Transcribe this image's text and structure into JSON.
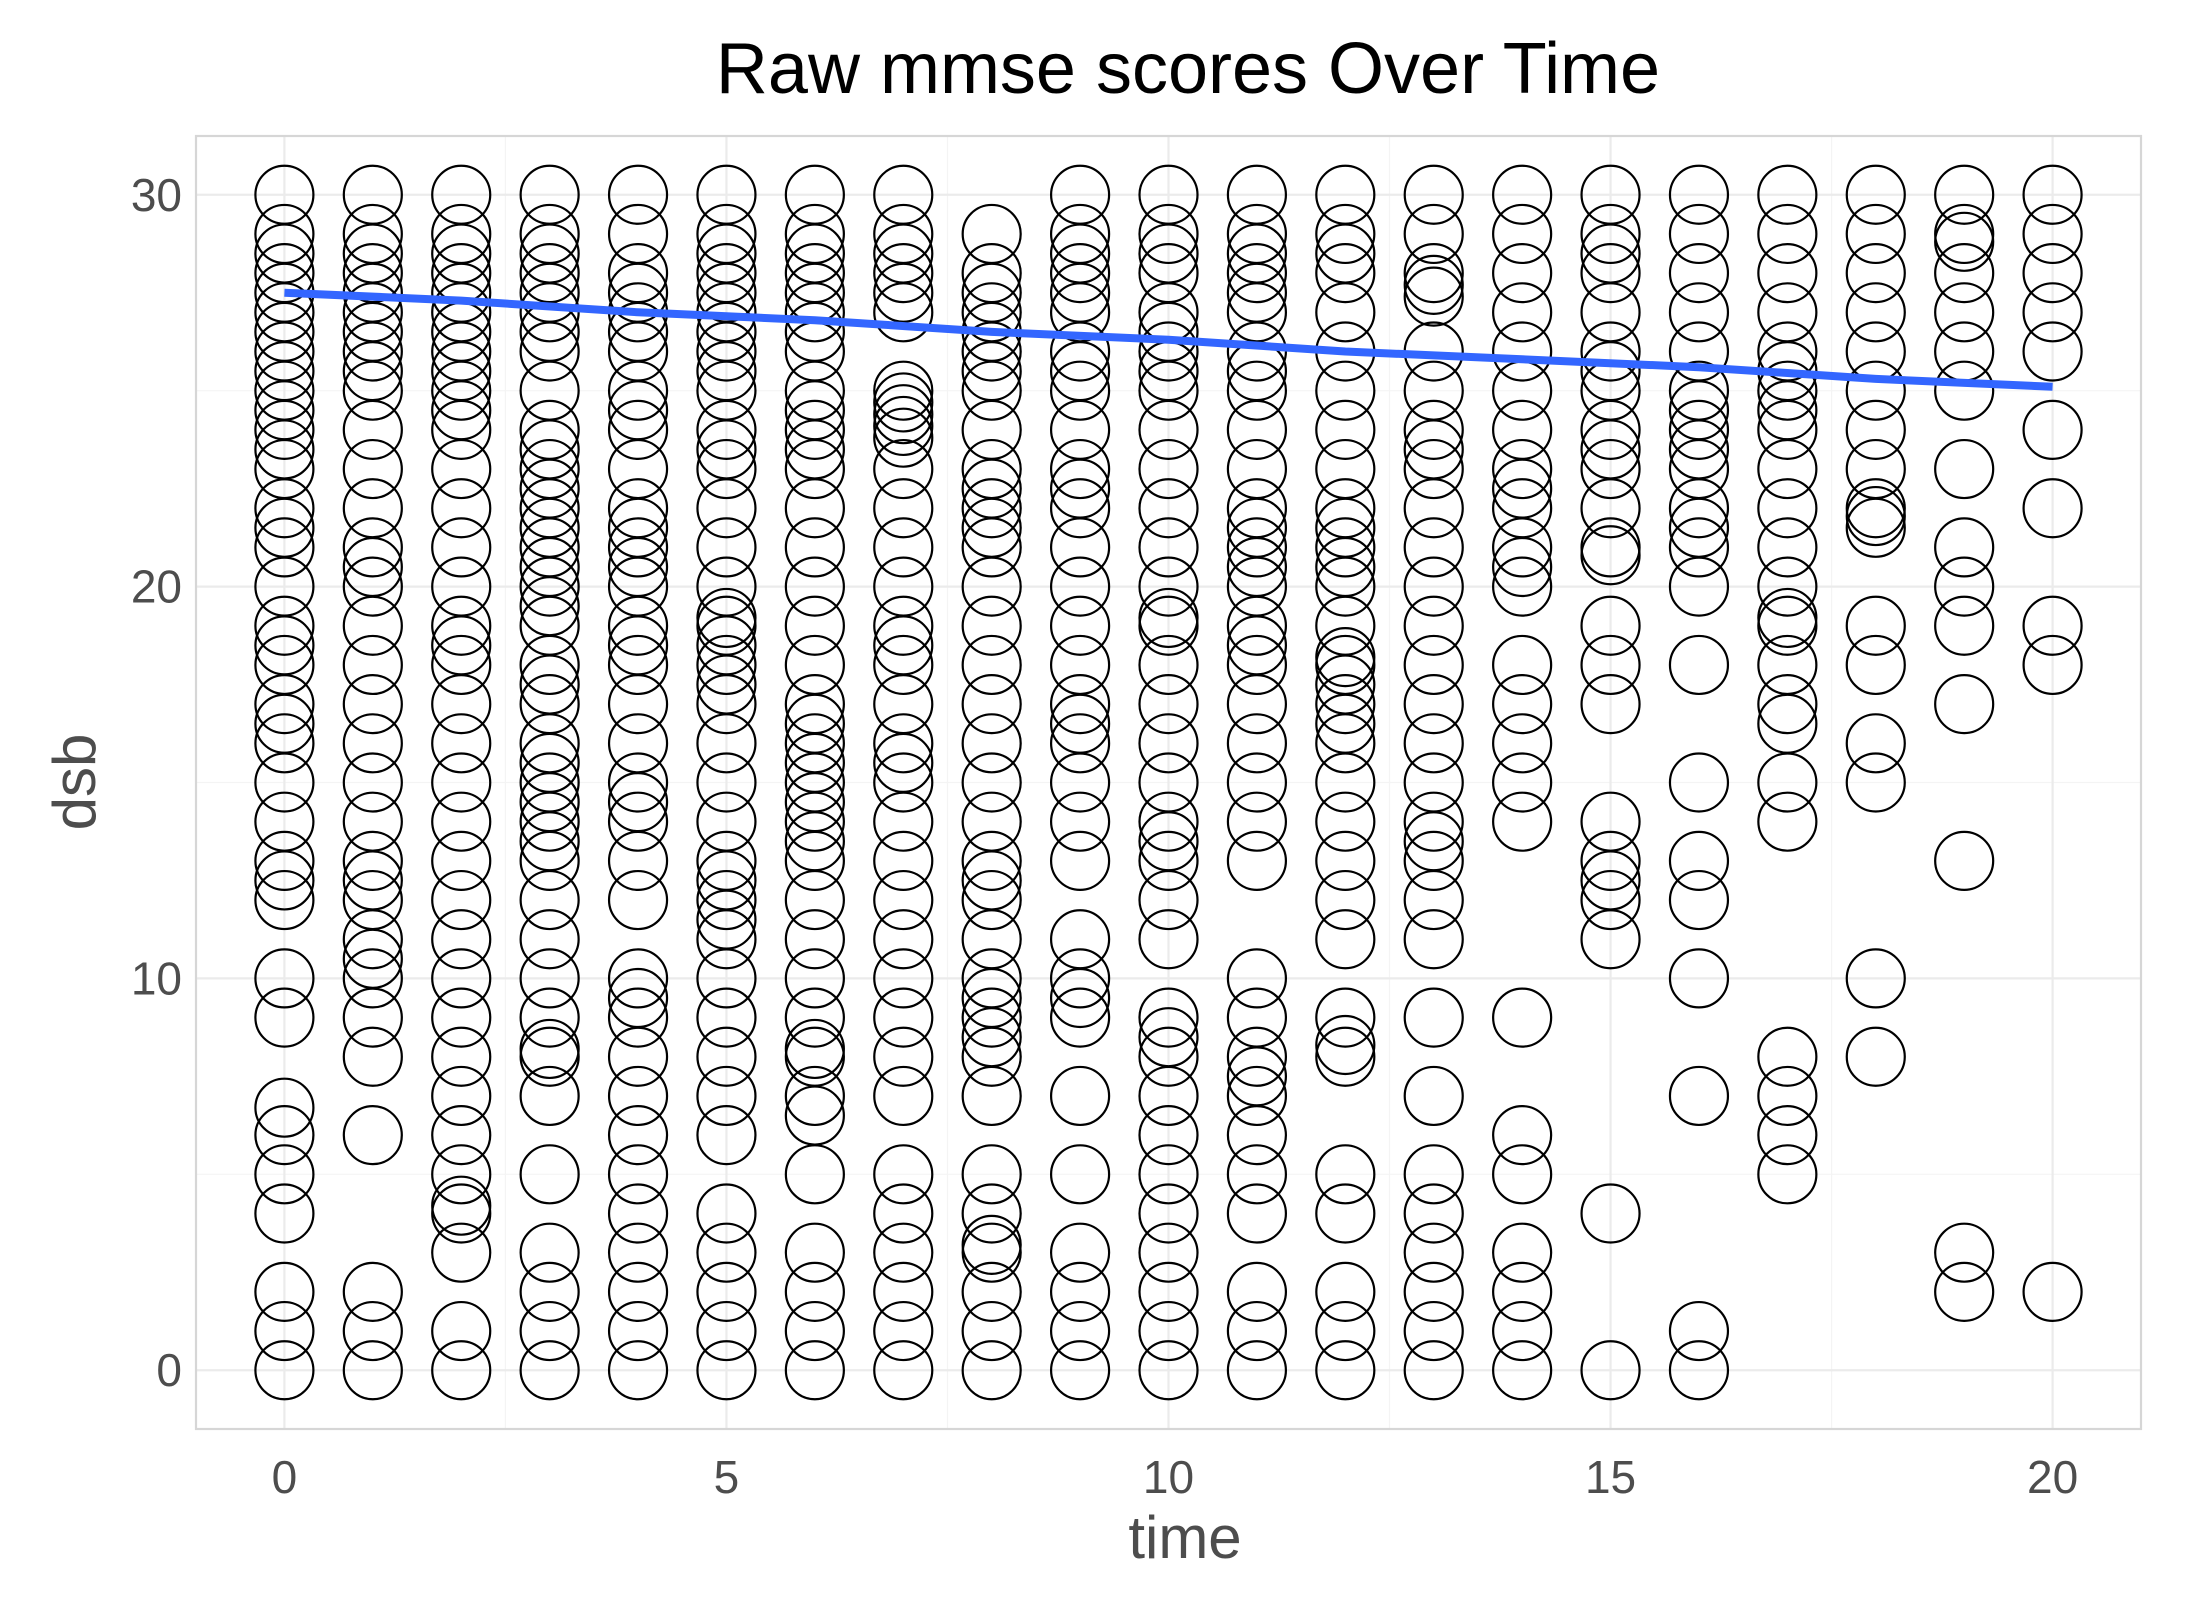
{
  "chart_data": {
    "type": "scatter",
    "title": "Raw mmse scores Over Time",
    "xlabel": "time",
    "ylabel": "dsb",
    "xlim": [
      -1,
      21
    ],
    "ylim": [
      -1.5,
      31.5
    ],
    "x_ticks": [
      0,
      5,
      10,
      15,
      20
    ],
    "y_ticks": [
      0,
      10,
      20,
      30
    ],
    "grid": true,
    "marker": "hollow-circle",
    "colors": {
      "points": "#000000",
      "trend": "#3366ff",
      "grid": "#ebebeb",
      "border": "#d6d6d6"
    },
    "points_by_time": [
      {
        "x": 0,
        "y": [
          30,
          29,
          28.5,
          28,
          27.5,
          27,
          26.5,
          26,
          25.5,
          25,
          24.5,
          24,
          23.5,
          23,
          22,
          21.5,
          21,
          20,
          19,
          18.5,
          18,
          17,
          16.5,
          16,
          15,
          14,
          13,
          12.5,
          12,
          10,
          9,
          6.7,
          6,
          5,
          4,
          2,
          1,
          0
        ]
      },
      {
        "x": 1,
        "y": [
          30,
          29,
          28.5,
          28,
          27.5,
          27,
          26.5,
          26,
          25.5,
          25,
          24,
          23,
          22,
          21,
          20.5,
          20,
          19,
          18,
          17,
          16,
          15,
          14,
          13,
          12.5,
          12,
          11,
          10.5,
          10,
          9,
          8,
          6,
          2,
          1,
          0
        ]
      },
      {
        "x": 2,
        "y": [
          30,
          29,
          28.5,
          28,
          27.5,
          27,
          26.5,
          26,
          25.5,
          25,
          24.5,
          24,
          23,
          22,
          21,
          20,
          19,
          18.5,
          18,
          17,
          16,
          15,
          14,
          13,
          12,
          11,
          10,
          9,
          8,
          7,
          6,
          5,
          4.2,
          4,
          3,
          1,
          0
        ]
      },
      {
        "x": 3,
        "y": [
          30,
          29,
          28.5,
          28,
          27.5,
          27,
          26.5,
          26,
          25,
          24,
          23.5,
          23,
          22.5,
          22,
          21.5,
          21,
          20.5,
          20,
          19.5,
          19,
          18,
          17.5,
          17,
          16,
          15.5,
          15,
          14.5,
          14,
          13.5,
          13,
          12,
          11,
          10,
          9,
          8.2,
          8,
          7,
          5,
          3,
          2,
          1,
          0
        ]
      },
      {
        "x": 4,
        "y": [
          30,
          29,
          28,
          27.5,
          27,
          26.5,
          26,
          25,
          24.5,
          24,
          23,
          22,
          21.5,
          21,
          20.5,
          20,
          19,
          18.5,
          18,
          17,
          16,
          15,
          14.5,
          14,
          13,
          12,
          10,
          9.5,
          9,
          8,
          7,
          6,
          5,
          4,
          3,
          2,
          1,
          0
        ]
      },
      {
        "x": 5,
        "y": [
          30,
          29,
          28.5,
          28,
          27.5,
          27,
          26.5,
          26,
          25.5,
          25,
          24,
          23.5,
          23,
          22,
          21,
          20,
          19.2,
          19,
          18.5,
          18,
          17.5,
          17,
          16,
          15,
          14,
          13,
          12.5,
          12,
          11.5,
          11,
          10,
          9,
          8,
          7,
          6,
          4,
          3,
          2,
          1,
          0
        ]
      },
      {
        "x": 6,
        "y": [
          30,
          29,
          28.5,
          28,
          27.5,
          27,
          26.5,
          26,
          25,
          24.5,
          24,
          23.5,
          23,
          22,
          21,
          20,
          19,
          18,
          17,
          16.5,
          16,
          15.5,
          15,
          14.5,
          14,
          13.5,
          13,
          12,
          11,
          10,
          9,
          8.2,
          8,
          7,
          6.5,
          5,
          3,
          2,
          1,
          0
        ]
      },
      {
        "x": 7,
        "y": [
          30,
          29,
          28.5,
          28,
          27.5,
          27,
          25,
          24.7,
          24.4,
          24.1,
          23.8,
          23,
          22,
          21,
          20,
          19,
          18.5,
          18,
          17,
          16,
          15.5,
          15,
          14,
          13,
          12,
          11,
          10,
          9,
          8,
          7,
          5,
          4,
          3,
          2,
          1,
          0
        ]
      },
      {
        "x": 8,
        "y": [
          29,
          28,
          27.5,
          27,
          26.5,
          26,
          25.5,
          25,
          24,
          23,
          22.5,
          22,
          21.5,
          21,
          20,
          19,
          18,
          17,
          16,
          15,
          14,
          13,
          12.5,
          12,
          11,
          10,
          9.5,
          9,
          8.5,
          8,
          7,
          5,
          4,
          3.2,
          3,
          2,
          1,
          0
        ]
      },
      {
        "x": 9,
        "y": [
          30,
          29,
          28.5,
          28,
          27.5,
          27,
          26,
          25.5,
          25,
          24,
          23,
          22.5,
          22,
          21,
          20,
          19,
          18,
          17,
          16.5,
          16,
          15,
          14,
          13,
          11,
          10,
          9.5,
          9,
          7,
          5,
          3,
          2,
          1,
          0
        ]
      },
      {
        "x": 10,
        "y": [
          30,
          29,
          28.5,
          28,
          27,
          26.5,
          26,
          25.5,
          25,
          24,
          23,
          22,
          21,
          20,
          19.2,
          19,
          18,
          17,
          16,
          15,
          14,
          13.5,
          13,
          12,
          11,
          9,
          8.5,
          8,
          7,
          6,
          5,
          4,
          3,
          2,
          1,
          0
        ]
      },
      {
        "x": 11,
        "y": [
          30,
          29,
          28.5,
          28,
          27.5,
          27,
          26,
          25.5,
          25,
          24,
          23,
          22,
          21.5,
          21,
          20.5,
          20,
          19,
          18.5,
          18,
          17,
          16,
          15,
          14,
          13,
          10,
          9,
          8,
          7.5,
          7,
          6,
          5,
          4,
          2,
          1,
          0
        ]
      },
      {
        "x": 12,
        "y": [
          30,
          29,
          28.5,
          28,
          27,
          26,
          25,
          24,
          23,
          22,
          21.5,
          21,
          20.5,
          20,
          19,
          18.2,
          18,
          17.5,
          17,
          16.5,
          16,
          15,
          14,
          13,
          12,
          11,
          9,
          8.3,
          8,
          5,
          4,
          2,
          1,
          0
        ]
      },
      {
        "x": 13,
        "y": [
          30,
          29,
          28,
          27.7,
          27.4,
          26,
          25,
          24,
          23.5,
          23,
          22,
          21,
          20,
          19,
          18,
          17,
          16,
          15,
          14,
          13.5,
          13,
          12,
          11,
          9,
          7,
          5,
          4,
          3,
          2,
          1,
          0
        ]
      },
      {
        "x": 14,
        "y": [
          30,
          29,
          28,
          27,
          26,
          25,
          24,
          23,
          22.5,
          22,
          21,
          20.5,
          20,
          18,
          17,
          16,
          15,
          14,
          9,
          6,
          5,
          3,
          2,
          1,
          0
        ]
      },
      {
        "x": 15,
        "y": [
          30,
          29,
          28.5,
          28,
          27,
          26,
          25.5,
          25,
          24,
          23.5,
          23,
          22,
          21,
          20.8,
          19,
          18,
          17,
          14,
          13,
          12.5,
          12,
          11,
          4,
          0
        ]
      },
      {
        "x": 16,
        "y": [
          30,
          29,
          28,
          27,
          26,
          25,
          24.5,
          24,
          23.5,
          23,
          22,
          21.5,
          21,
          20,
          18,
          15,
          13,
          12,
          10,
          7,
          1,
          0
        ]
      },
      {
        "x": 17,
        "y": [
          30,
          29,
          28,
          27,
          26,
          25.5,
          25,
          24.5,
          24,
          23,
          22,
          21,
          20,
          19.2,
          19,
          18,
          17,
          16.5,
          15,
          14,
          8,
          7,
          6,
          5
        ]
      },
      {
        "x": 18,
        "y": [
          30,
          29,
          28,
          27,
          26,
          25,
          24,
          23,
          22,
          21.8,
          21.5,
          19,
          18,
          16,
          15,
          10,
          8
        ]
      },
      {
        "x": 19,
        "y": [
          30,
          29,
          28.8,
          28,
          27,
          26,
          25,
          23,
          21,
          20,
          19,
          17,
          13,
          3,
          2
        ]
      },
      {
        "x": 20,
        "y": [
          30,
          29,
          28,
          27,
          26,
          24,
          22,
          19,
          18,
          2
        ]
      }
    ],
    "trend": {
      "x": [
        0,
        2,
        4,
        6,
        8,
        10,
        12,
        14,
        16,
        18,
        20
      ],
      "y": [
        27.5,
        27.3,
        27.0,
        26.8,
        26.5,
        26.3,
        26.0,
        25.8,
        25.6,
        25.3,
        25.1
      ]
    }
  }
}
